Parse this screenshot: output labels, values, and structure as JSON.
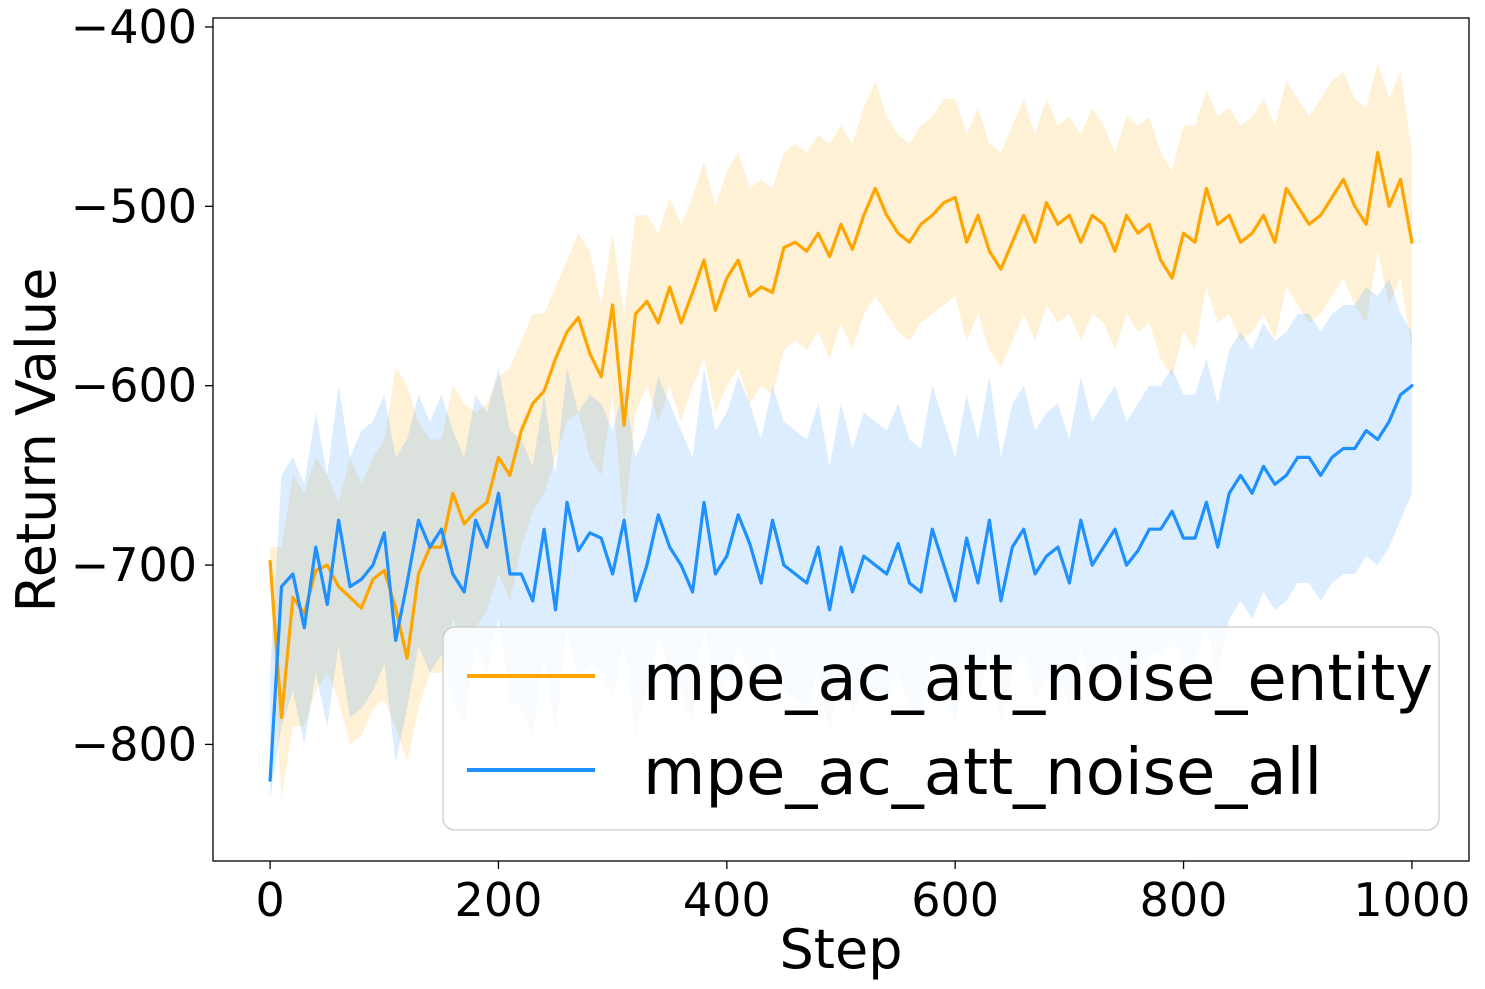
{
  "chart_data": {
    "type": "line",
    "xlabel": "Step",
    "ylabel": "Return Value",
    "xlim": [
      -50,
      1050
    ],
    "ylim": [
      -865,
      -395
    ],
    "xticks": [
      0,
      200,
      400,
      600,
      800,
      1000
    ],
    "yticks": [
      -400,
      -500,
      -600,
      -700,
      -800
    ],
    "xtick_labels": [
      "0",
      "200",
      "400",
      "600",
      "800",
      "1000"
    ],
    "ytick_labels": [
      "−400",
      "−500",
      "−600",
      "−700",
      "−800"
    ],
    "legend": {
      "placement": "lower-right",
      "entries": [
        "mpe_ac_att_noise_entity",
        "mpe_ac_att_noise_all"
      ]
    },
    "series": [
      {
        "name": "mpe_ac_att_noise_entity",
        "color": "#FFA500",
        "x": [
          0,
          10,
          20,
          30,
          40,
          50,
          60,
          70,
          80,
          90,
          100,
          110,
          120,
          130,
          140,
          150,
          160,
          170,
          180,
          190,
          200,
          210,
          220,
          230,
          240,
          250,
          260,
          270,
          280,
          290,
          300,
          310,
          320,
          330,
          340,
          350,
          360,
          370,
          380,
          390,
          400,
          410,
          420,
          430,
          440,
          450,
          460,
          470,
          480,
          490,
          500,
          510,
          520,
          530,
          540,
          550,
          560,
          570,
          580,
          590,
          600,
          610,
          620,
          630,
          640,
          650,
          660,
          670,
          680,
          690,
          700,
          710,
          720,
          730,
          740,
          750,
          760,
          770,
          780,
          790,
          800,
          810,
          820,
          830,
          840,
          850,
          860,
          870,
          880,
          890,
          900,
          910,
          920,
          930,
          940,
          950,
          960,
          970,
          980,
          990,
          1000
        ],
        "values": [
          -698,
          -785,
          -718,
          -727,
          -703,
          -700,
          -712,
          -718,
          -724,
          -708,
          -703,
          -724,
          -752,
          -705,
          -690,
          -690,
          -660,
          -677,
          -670,
          -665,
          -640,
          -650,
          -625,
          -610,
          -603,
          -585,
          -570,
          -562,
          -582,
          -595,
          -555,
          -622,
          -560,
          -553,
          -565,
          -545,
          -565,
          -548,
          -530,
          -558,
          -540,
          -530,
          -550,
          -545,
          -548,
          -523,
          -520,
          -525,
          -515,
          -528,
          -510,
          -524,
          -505,
          -490,
          -505,
          -515,
          -520,
          -510,
          -505,
          -498,
          -495,
          -520,
          -505,
          -525,
          -535,
          -520,
          -505,
          -520,
          -498,
          -510,
          -505,
          -520,
          -505,
          -510,
          -525,
          -505,
          -515,
          -510,
          -530,
          -540,
          -515,
          -520,
          -490,
          -510,
          -505,
          -520,
          -515,
          -505,
          -520,
          -490,
          -500,
          -510,
          -505,
          -495,
          -485,
          -500,
          -510,
          -470,
          -500,
          -485,
          -520
        ],
        "band_upper": [
          -690,
          -690,
          -650,
          -660,
          -640,
          -650,
          -665,
          -640,
          -655,
          -640,
          -630,
          -590,
          -600,
          -620,
          -630,
          -630,
          -600,
          -610,
          -615,
          -610,
          -595,
          -590,
          -575,
          -560,
          -560,
          -545,
          -530,
          -515,
          -525,
          -555,
          -515,
          -560,
          -505,
          -505,
          -515,
          -495,
          -510,
          -495,
          -475,
          -500,
          -480,
          -470,
          -490,
          -485,
          -490,
          -470,
          -465,
          -470,
          -460,
          -465,
          -455,
          -465,
          -445,
          -430,
          -450,
          -460,
          -465,
          -455,
          -450,
          -440,
          -440,
          -460,
          -445,
          -465,
          -470,
          -455,
          -440,
          -460,
          -440,
          -455,
          -450,
          -460,
          -445,
          -455,
          -470,
          -450,
          -455,
          -450,
          -470,
          -480,
          -455,
          -455,
          -435,
          -450,
          -445,
          -455,
          -450,
          -440,
          -455,
          -430,
          -440,
          -450,
          -440,
          -430,
          -425,
          -440,
          -445,
          -420,
          -440,
          -425,
          -470
        ],
        "band_lower": [
          -710,
          -830,
          -790,
          -790,
          -770,
          -760,
          -775,
          -800,
          -795,
          -780,
          -775,
          -790,
          -810,
          -780,
          -760,
          -760,
          -730,
          -745,
          -735,
          -725,
          -705,
          -720,
          -690,
          -670,
          -660,
          -640,
          -620,
          -615,
          -640,
          -650,
          -605,
          -680,
          -615,
          -600,
          -620,
          -600,
          -620,
          -600,
          -585,
          -615,
          -600,
          -590,
          -610,
          -600,
          -605,
          -580,
          -575,
          -580,
          -570,
          -585,
          -565,
          -580,
          -560,
          -550,
          -560,
          -570,
          -575,
          -565,
          -560,
          -555,
          -550,
          -575,
          -560,
          -580,
          -590,
          -575,
          -560,
          -575,
          -555,
          -565,
          -560,
          -575,
          -560,
          -565,
          -580,
          -560,
          -570,
          -565,
          -585,
          -595,
          -570,
          -580,
          -545,
          -565,
          -560,
          -575,
          -570,
          -560,
          -575,
          -545,
          -555,
          -565,
          -560,
          -550,
          -540,
          -555,
          -565,
          -525,
          -555,
          -540,
          -580
        ]
      },
      {
        "name": "mpe_ac_att_noise_all",
        "color": "#1E90FF",
        "x": [
          0,
          10,
          20,
          30,
          40,
          50,
          60,
          70,
          80,
          90,
          100,
          110,
          120,
          130,
          140,
          150,
          160,
          170,
          180,
          190,
          200,
          210,
          220,
          230,
          240,
          250,
          260,
          270,
          280,
          290,
          300,
          310,
          320,
          330,
          340,
          350,
          360,
          370,
          380,
          390,
          400,
          410,
          420,
          430,
          440,
          450,
          460,
          470,
          480,
          490,
          500,
          510,
          520,
          530,
          540,
          550,
          560,
          570,
          580,
          590,
          600,
          610,
          620,
          630,
          640,
          650,
          660,
          670,
          680,
          690,
          700,
          710,
          720,
          730,
          740,
          750,
          760,
          770,
          780,
          790,
          800,
          810,
          820,
          830,
          840,
          850,
          860,
          870,
          880,
          890,
          900,
          910,
          920,
          930,
          940,
          950,
          960,
          970,
          980,
          990,
          1000
        ],
        "values": [
          -820,
          -712,
          -705,
          -735,
          -690,
          -722,
          -675,
          -712,
          -708,
          -700,
          -682,
          -742,
          -710,
          -675,
          -690,
          -680,
          -705,
          -715,
          -675,
          -690,
          -660,
          -705,
          -705,
          -720,
          -680,
          -725,
          -665,
          -692,
          -682,
          -685,
          -705,
          -675,
          -720,
          -700,
          -672,
          -690,
          -700,
          -715,
          -665,
          -705,
          -695,
          -672,
          -688,
          -710,
          -675,
          -700,
          -705,
          -710,
          -690,
          -725,
          -690,
          -715,
          -695,
          -700,
          -705,
          -688,
          -710,
          -715,
          -680,
          -700,
          -720,
          -685,
          -710,
          -675,
          -720,
          -690,
          -680,
          -705,
          -695,
          -690,
          -710,
          -675,
          -700,
          -690,
          -680,
          -700,
          -692,
          -680,
          -680,
          -670,
          -685,
          -685,
          -665,
          -690,
          -660,
          -650,
          -660,
          -645,
          -655,
          -650,
          -640,
          -640,
          -650,
          -640,
          -635,
          -635,
          -625,
          -630,
          -620,
          -605,
          -600
        ],
        "band_upper": [
          -760,
          -650,
          -640,
          -655,
          -615,
          -650,
          -600,
          -640,
          -625,
          -620,
          -605,
          -640,
          -630,
          -605,
          -620,
          -605,
          -625,
          -640,
          -605,
          -615,
          -590,
          -625,
          -630,
          -645,
          -605,
          -650,
          -590,
          -615,
          -605,
          -610,
          -625,
          -600,
          -640,
          -625,
          -595,
          -610,
          -625,
          -640,
          -590,
          -625,
          -615,
          -595,
          -610,
          -630,
          -600,
          -620,
          -625,
          -630,
          -610,
          -645,
          -610,
          -635,
          -615,
          -620,
          -625,
          -610,
          -630,
          -635,
          -600,
          -620,
          -640,
          -605,
          -630,
          -595,
          -640,
          -610,
          -600,
          -625,
          -615,
          -610,
          -630,
          -595,
          -620,
          -610,
          -600,
          -620,
          -610,
          -600,
          -600,
          -590,
          -605,
          -605,
          -585,
          -610,
          -580,
          -570,
          -580,
          -565,
          -575,
          -570,
          -560,
          -560,
          -570,
          -560,
          -555,
          -555,
          -545,
          -550,
          -540,
          -560,
          -570
        ],
        "band_lower": [
          -830,
          -790,
          -770,
          -800,
          -760,
          -790,
          -745,
          -785,
          -780,
          -770,
          -755,
          -810,
          -780,
          -745,
          -760,
          -750,
          -775,
          -790,
          -745,
          -760,
          -730,
          -775,
          -780,
          -795,
          -750,
          -795,
          -735,
          -765,
          -755,
          -760,
          -775,
          -745,
          -795,
          -770,
          -740,
          -760,
          -770,
          -790,
          -735,
          -775,
          -765,
          -745,
          -760,
          -780,
          -745,
          -770,
          -775,
          -780,
          -760,
          -795,
          -760,
          -785,
          -765,
          -770,
          -775,
          -760,
          -780,
          -785,
          -750,
          -770,
          -790,
          -755,
          -780,
          -745,
          -790,
          -760,
          -750,
          -775,
          -765,
          -760,
          -780,
          -745,
          -770,
          -760,
          -750,
          -770,
          -760,
          -750,
          -750,
          -740,
          -755,
          -755,
          -735,
          -760,
          -730,
          -720,
          -730,
          -715,
          -725,
          -720,
          -710,
          -710,
          -720,
          -710,
          -705,
          -705,
          -695,
          -700,
          -690,
          -675,
          -660
        ]
      }
    ]
  }
}
